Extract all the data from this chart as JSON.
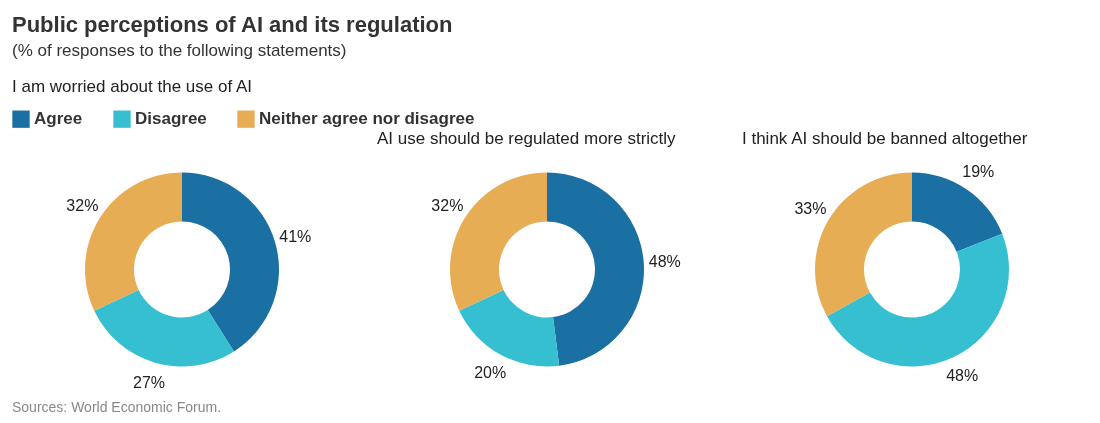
{
  "chart_data": [
    {
      "type": "other",
      "title": "Public perceptions of AI and its regulation",
      "subtitle": "(% of responses to the following statements)",
      "annotations": [
        "Sources: World Economic Forum."
      ]
    },
    {
      "type": "donut",
      "title": "I am worried about the use of AI",
      "categories": [
        "Agree",
        "Disagree",
        "Neither agree nor disagree"
      ],
      "values": [
        41,
        27,
        32
      ],
      "value_labels": [
        "41%",
        "27%",
        "32%"
      ],
      "colors": [
        "#1a6fa3",
        "#36bfd1",
        "#e6ad55"
      ],
      "legend": "top"
    },
    {
      "type": "donut",
      "title": "AI use should be regulated more strictly",
      "values": [
        48,
        20,
        32
      ],
      "value_labels": [
        "48%",
        "20%",
        "32%"
      ],
      "colors": [
        "#1a6fa3",
        "#36bfd1",
        "#e6ad55"
      ]
    },
    {
      "type": "donut",
      "title": "I think AI should be banned altogether",
      "values": [
        19,
        48,
        33
      ],
      "value_labels": [
        "19%",
        "48%",
        "33%"
      ],
      "colors": [
        "#1a6fa3",
        "#36bfd1",
        "#e6ad55"
      ]
    }
  ]
}
